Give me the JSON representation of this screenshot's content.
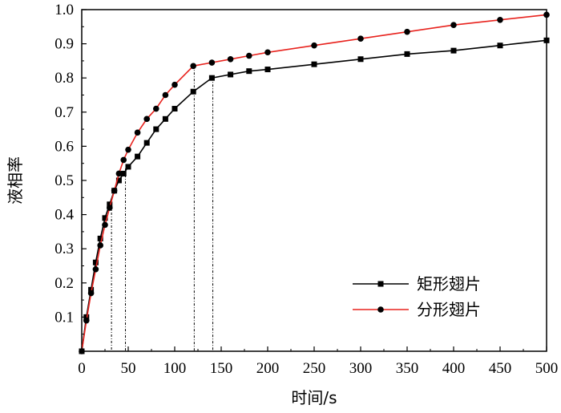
{
  "chart_data": {
    "type": "line",
    "xlabel": "时间/s",
    "ylabel": "液相率",
    "xlim": [
      0,
      500
    ],
    "ylim": [
      0,
      1.0
    ],
    "x_ticks": [
      0,
      50,
      100,
      150,
      200,
      250,
      300,
      350,
      400,
      450,
      500
    ],
    "x_tick_labels": [
      "0",
      "50",
      "100",
      "150",
      "200",
      "250",
      "300",
      "350",
      "400",
      "450",
      "500"
    ],
    "y_ticks": [
      0.1,
      0.2,
      0.3,
      0.4,
      0.5,
      0.6,
      0.7,
      0.8,
      0.9,
      1.0
    ],
    "y_tick_labels": [
      "0.1",
      "0.2",
      "0.3",
      "0.4",
      "0.5",
      "0.6",
      "0.7",
      "0.8",
      "0.9",
      "1.0"
    ],
    "grid": false,
    "legend_position": "bottom-right",
    "series": [
      {
        "name": "矩形翅片",
        "color": "#000000",
        "marker": "square",
        "points": [
          [
            0,
            0.0
          ],
          [
            5,
            0.1
          ],
          [
            10,
            0.18
          ],
          [
            15,
            0.26
          ],
          [
            20,
            0.33
          ],
          [
            25,
            0.39
          ],
          [
            30,
            0.43
          ],
          [
            35,
            0.47
          ],
          [
            40,
            0.5
          ],
          [
            45,
            0.52
          ],
          [
            50,
            0.54
          ],
          [
            60,
            0.57
          ],
          [
            70,
            0.61
          ],
          [
            80,
            0.65
          ],
          [
            90,
            0.68
          ],
          [
            100,
            0.71
          ],
          [
            120,
            0.76
          ],
          [
            140,
            0.8
          ],
          [
            160,
            0.81
          ],
          [
            180,
            0.82
          ],
          [
            200,
            0.825
          ],
          [
            250,
            0.84
          ],
          [
            300,
            0.855
          ],
          [
            350,
            0.87
          ],
          [
            400,
            0.88
          ],
          [
            450,
            0.895
          ],
          [
            500,
            0.91
          ]
        ]
      },
      {
        "name": "分形翅片",
        "color": "#e8231e",
        "marker": "circle",
        "points": [
          [
            0,
            0.0
          ],
          [
            5,
            0.09
          ],
          [
            10,
            0.17
          ],
          [
            15,
            0.24
          ],
          [
            20,
            0.31
          ],
          [
            25,
            0.37
          ],
          [
            30,
            0.42
          ],
          [
            35,
            0.47
          ],
          [
            40,
            0.52
          ],
          [
            45,
            0.56
          ],
          [
            50,
            0.59
          ],
          [
            60,
            0.64
          ],
          [
            70,
            0.68
          ],
          [
            80,
            0.71
          ],
          [
            90,
            0.75
          ],
          [
            100,
            0.78
          ],
          [
            120,
            0.835
          ],
          [
            140,
            0.845
          ],
          [
            160,
            0.855
          ],
          [
            180,
            0.865
          ],
          [
            200,
            0.875
          ],
          [
            250,
            0.895
          ],
          [
            300,
            0.915
          ],
          [
            350,
            0.935
          ],
          [
            400,
            0.955
          ],
          [
            450,
            0.97
          ],
          [
            500,
            0.985
          ]
        ]
      }
    ],
    "reference_lines": [
      {
        "x": 32,
        "y": 0.425
      },
      {
        "x": 47,
        "y": 0.535
      },
      {
        "x": 121,
        "y": 0.835
      },
      {
        "x": 141,
        "y": 0.8
      }
    ]
  }
}
